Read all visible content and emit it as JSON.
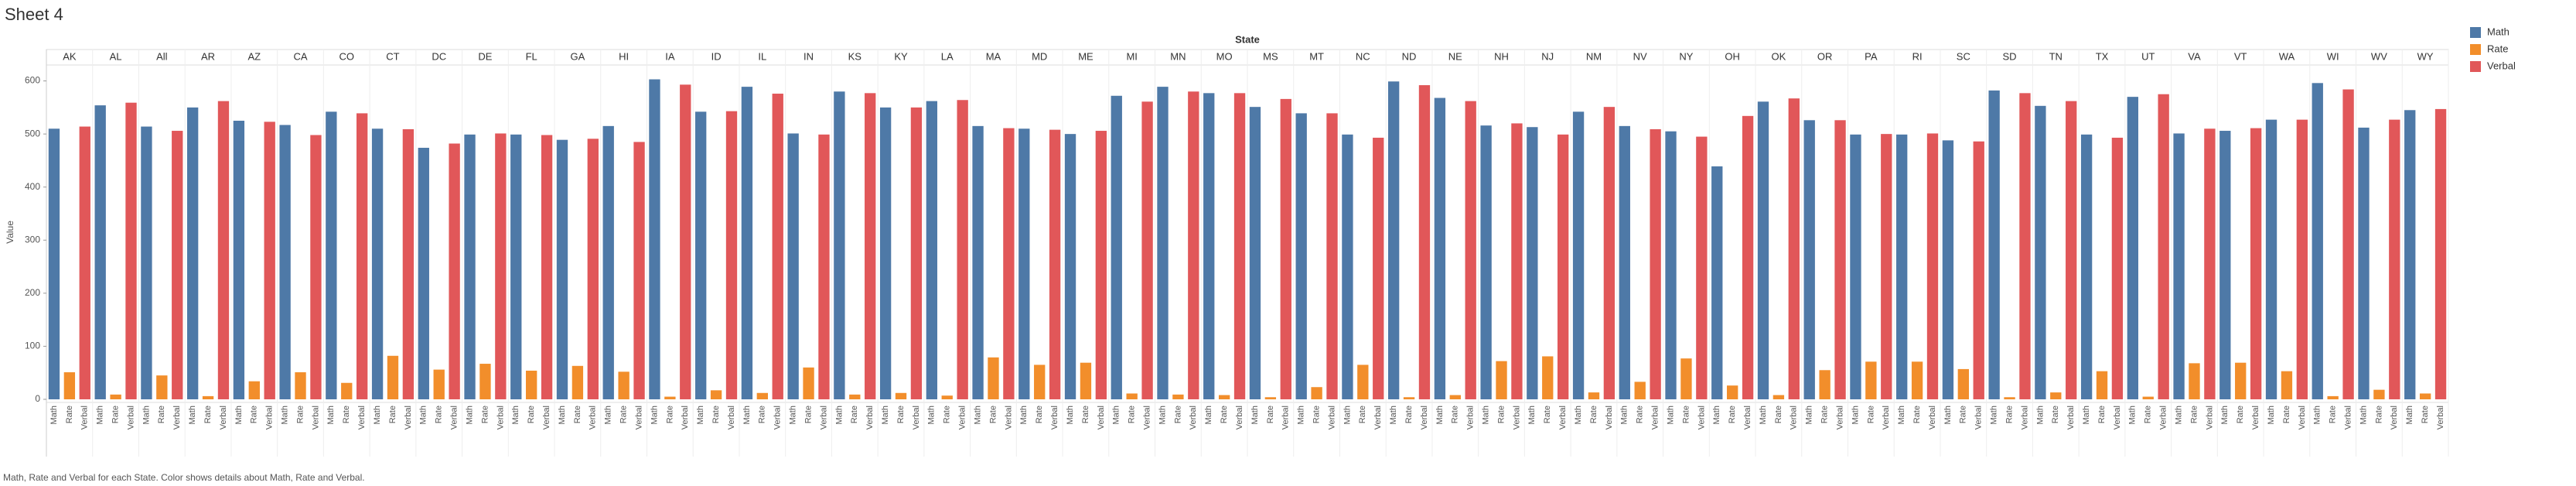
{
  "title": "Sheet 4",
  "caption": "Math, Rate and Verbal for each State.  Color shows details about Math, Rate and Verbal.",
  "chart_data": {
    "type": "bar",
    "column_header": "State",
    "y_label": "Value",
    "categories": [
      "AK",
      "AL",
      "All",
      "AR",
      "AZ",
      "CA",
      "CO",
      "CT",
      "DC",
      "DE",
      "FL",
      "GA",
      "HI",
      "IA",
      "ID",
      "IL",
      "IN",
      "KS",
      "KY",
      "LA",
      "MA",
      "MD",
      "ME",
      "MI",
      "MN",
      "MO",
      "MS",
      "MT",
      "NC",
      "ND",
      "NE",
      "NH",
      "NJ",
      "NM",
      "NV",
      "NY",
      "OH",
      "OK",
      "OR",
      "PA",
      "RI",
      "SC",
      "SD",
      "TN",
      "TX",
      "UT",
      "VA",
      "VT",
      "WA",
      "WI",
      "WV",
      "WY"
    ],
    "series": [
      {
        "name": "Math",
        "color": "#4e79a7",
        "values": [
          510,
          554,
          514,
          550,
          525,
          517,
          542,
          510,
          474,
          499,
          499,
          489,
          515,
          603,
          542,
          589,
          501,
          580,
          550,
          562,
          515,
          510,
          500,
          572,
          589,
          577,
          551,
          539,
          499,
          599,
          568,
          516,
          513,
          542,
          515,
          505,
          439,
          561,
          526,
          499,
          499,
          488,
          582,
          553,
          499,
          570,
          501,
          506,
          527,
          596,
          512,
          545
        ]
      },
      {
        "name": "Rate",
        "color": "#f28e2b",
        "values": [
          51,
          9,
          45,
          6,
          34,
          51,
          31,
          82,
          56,
          67,
          54,
          63,
          52,
          5,
          17,
          12,
          60,
          9,
          12,
          7,
          79,
          65,
          69,
          11,
          9,
          8,
          4,
          23,
          65,
          4,
          8,
          72,
          81,
          13,
          33,
          77,
          26,
          8,
          55,
          71,
          71,
          57,
          4,
          13,
          53,
          5,
          68,
          69,
          53,
          6,
          18,
          11
        ]
      },
      {
        "name": "Verbal",
        "color": "#e15759",
        "values": [
          514,
          559,
          506,
          562,
          523,
          498,
          539,
          509,
          482,
          501,
          498,
          491,
          485,
          593,
          543,
          576,
          499,
          577,
          550,
          564,
          511,
          508,
          506,
          561,
          580,
          577,
          566,
          539,
          493,
          592,
          562,
          520,
          499,
          551,
          509,
          495,
          534,
          567,
          526,
          500,
          501,
          486,
          577,
          562,
          493,
          575,
          510,
          511,
          527,
          584,
          527,
          547
        ]
      }
    ],
    "ylim": [
      0,
      630
    ],
    "yticks": [
      0,
      100,
      200,
      300,
      400,
      500,
      600
    ],
    "grid": false,
    "legend": "right"
  }
}
